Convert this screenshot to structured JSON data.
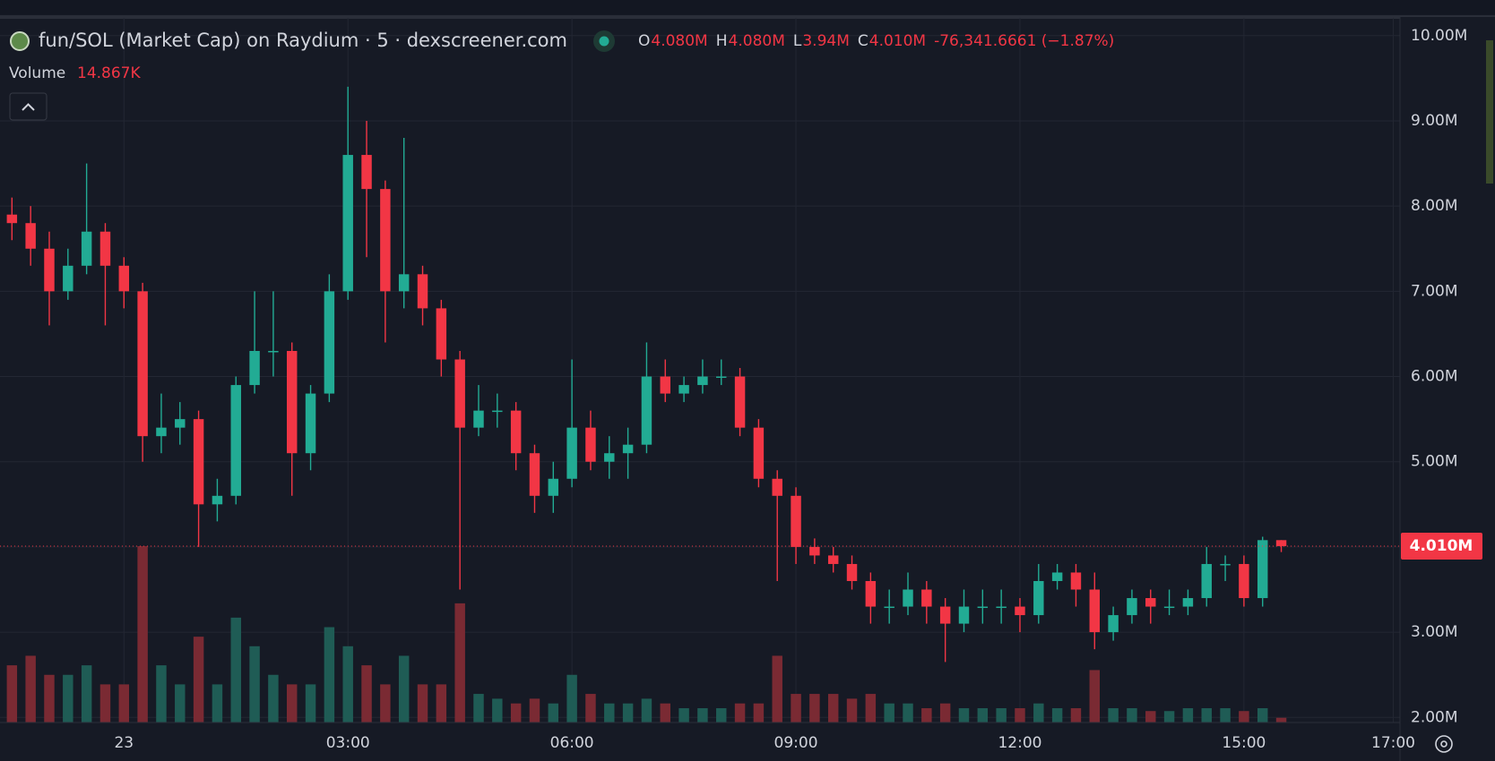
{
  "chart_data": {
    "type": "candlestick",
    "title": "fun/SOL (Market Cap) on Raydium · 5 · dexscreener.com",
    "ohlc_legend": [
      {
        "key": "O",
        "value": "4.080M"
      },
      {
        "key": "H",
        "value": "4.080M"
      },
      {
        "key": "L",
        "value": "3.94M"
      },
      {
        "key": "C",
        "value": "4.010M"
      }
    ],
    "change": "-76,341.6661 (−1.87%)",
    "volume_title": "Volume",
    "volume_value_label": "14.867K",
    "last_price": {
      "value": 4.01,
      "label": "4.010M"
    },
    "up_color": "#22ab94",
    "down_color": "#f23645",
    "grid": true,
    "x": [
      -1.5,
      -1.25,
      -1,
      -0.75,
      -0.5,
      -0.25,
      0,
      0.25,
      0.5,
      0.75,
      1,
      1.25,
      1.5,
      1.75,
      2,
      2.25,
      2.5,
      2.75,
      3,
      3.25,
      3.5,
      3.75,
      4,
      4.25,
      4.5,
      4.75,
      5,
      5.25,
      5.5,
      5.75,
      6,
      6.25,
      6.5,
      6.75,
      7,
      7.25,
      7.5,
      7.75,
      8,
      8.25,
      8.5,
      8.75,
      9,
      9.25,
      9.5,
      9.75,
      10,
      10.25,
      10.5,
      10.75,
      11,
      11.25,
      11.5,
      11.75,
      12,
      12.25,
      12.5,
      12.75,
      13,
      13.25,
      13.5,
      13.75,
      14,
      14.25,
      14.5,
      14.75,
      15,
      15.25,
      15.5
    ],
    "open": [
      7.9,
      7.8,
      7.5,
      7.0,
      7.3,
      7.7,
      7.3,
      7.0,
      5.3,
      5.4,
      5.5,
      4.5,
      4.6,
      5.9,
      6.3,
      6.3,
      5.1,
      5.8,
      7.0,
      8.6,
      8.2,
      7.0,
      7.2,
      6.8,
      6.2,
      5.4,
      5.6,
      5.6,
      5.1,
      4.6,
      4.8,
      5.4,
      5.0,
      5.1,
      5.2,
      6.0,
      5.8,
      5.9,
      6.0,
      6.0,
      5.4,
      4.8,
      4.6,
      4.0,
      3.9,
      3.8,
      3.6,
      3.3,
      3.3,
      3.5,
      3.3,
      3.1,
      3.3,
      3.3,
      3.3,
      3.2,
      3.6,
      3.7,
      3.5,
      3.0,
      3.2,
      3.4,
      3.3,
      3.3,
      3.4,
      3.8,
      3.8,
      3.4,
      4.08
    ],
    "high": [
      8.1,
      8.0,
      7.7,
      7.5,
      8.5,
      7.8,
      7.4,
      7.1,
      5.8,
      5.7,
      5.6,
      4.8,
      6.0,
      7.0,
      7.0,
      6.4,
      5.9,
      7.2,
      9.4,
      9.0,
      8.3,
      8.8,
      7.3,
      6.9,
      6.3,
      5.9,
      5.8,
      5.7,
      5.2,
      5.0,
      6.2,
      5.6,
      5.3,
      5.4,
      6.4,
      6.2,
      6.0,
      6.2,
      6.2,
      6.1,
      5.5,
      4.9,
      4.7,
      4.1,
      4.0,
      3.9,
      3.7,
      3.5,
      3.7,
      3.6,
      3.4,
      3.5,
      3.5,
      3.5,
      3.4,
      3.8,
      3.8,
      3.8,
      3.7,
      3.3,
      3.5,
      3.5,
      3.5,
      3.5,
      4.0,
      3.9,
      3.9,
      4.12,
      4.08
    ],
    "low": [
      7.6,
      7.3,
      6.6,
      6.9,
      7.2,
      6.6,
      6.8,
      5.0,
      5.1,
      5.2,
      4.0,
      4.3,
      4.5,
      5.8,
      6.0,
      4.6,
      4.9,
      5.7,
      6.9,
      7.4,
      6.4,
      6.8,
      6.6,
      6.0,
      3.5,
      5.3,
      5.4,
      4.9,
      4.4,
      4.4,
      4.7,
      4.9,
      4.8,
      4.8,
      5.1,
      5.7,
      5.7,
      5.8,
      5.9,
      5.3,
      4.7,
      3.6,
      3.8,
      3.8,
      3.7,
      3.5,
      3.1,
      3.1,
      3.2,
      3.1,
      2.65,
      3.0,
      3.1,
      3.1,
      3.0,
      3.1,
      3.5,
      3.3,
      2.8,
      2.9,
      3.1,
      3.1,
      3.2,
      3.2,
      3.3,
      3.6,
      3.3,
      3.3,
      3.94
    ],
    "close": [
      7.8,
      7.5,
      7.0,
      7.3,
      7.7,
      7.3,
      7.0,
      5.3,
      5.4,
      5.5,
      4.5,
      4.6,
      5.9,
      6.3,
      6.3,
      5.1,
      5.8,
      7.0,
      8.6,
      8.2,
      7.0,
      7.2,
      6.8,
      6.2,
      5.4,
      5.6,
      5.6,
      5.1,
      4.6,
      4.8,
      5.4,
      5.0,
      5.1,
      5.2,
      6.0,
      5.8,
      5.9,
      6.0,
      6.0,
      5.4,
      4.8,
      4.6,
      4.0,
      3.9,
      3.8,
      3.6,
      3.3,
      3.3,
      3.5,
      3.3,
      3.1,
      3.3,
      3.3,
      3.3,
      3.2,
      3.6,
      3.7,
      3.5,
      3.0,
      3.2,
      3.4,
      3.3,
      3.3,
      3.4,
      3.8,
      3.8,
      3.4,
      4.08,
      4.01
    ],
    "volume": [
      180,
      210,
      150,
      150,
      180,
      120,
      120,
      555,
      180,
      120,
      270,
      120,
      330,
      240,
      150,
      120,
      120,
      300,
      240,
      180,
      120,
      210,
      120,
      120,
      375,
      90,
      75,
      60,
      75,
      60,
      150,
      90,
      60,
      60,
      75,
      60,
      45,
      45,
      45,
      60,
      60,
      210,
      90,
      90,
      90,
      75,
      90,
      60,
      60,
      45,
      60,
      45,
      45,
      45,
      45,
      60,
      45,
      45,
      165,
      45,
      45,
      36,
      36,
      45,
      45,
      45,
      36,
      45,
      14.867
    ],
    "xlim": [
      -1.66,
      17.09
    ],
    "xticks": [
      {
        "value": 0,
        "label": "23"
      },
      {
        "value": 3,
        "label": "03:00"
      },
      {
        "value": 6,
        "label": "06:00"
      },
      {
        "value": 9,
        "label": "09:00"
      },
      {
        "value": 12,
        "label": "12:00"
      },
      {
        "value": 15,
        "label": "15:00"
      },
      {
        "value": 17,
        "label": "17:00"
      }
    ],
    "ylim": [
      1.94,
      10.25
    ],
    "yticks": [
      {
        "value": 10,
        "label": "10.00M"
      },
      {
        "value": 9,
        "label": "9.00M"
      },
      {
        "value": 8,
        "label": "8.00M"
      },
      {
        "value": 7,
        "label": "7.00M"
      },
      {
        "value": 6,
        "label": "6.00M"
      },
      {
        "value": 5,
        "label": "5.00M"
      },
      {
        "value": 4,
        "label": "4.00M"
      },
      {
        "value": 3,
        "label": "3.00M"
      },
      {
        "value": 2,
        "label": "2.00M"
      }
    ]
  }
}
